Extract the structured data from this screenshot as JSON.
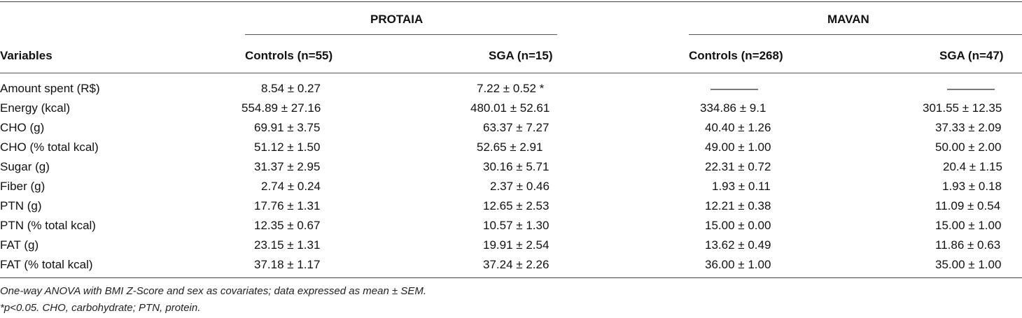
{
  "table": {
    "groups": [
      "PROTAIA",
      "MAVAN"
    ],
    "headers": {
      "variables": "Variables",
      "col1": "Controls (n=55)",
      "col2": "SGA (n=15)",
      "col3": "Controls (n=268)",
      "col4": "SGA (n=47)"
    },
    "rows": [
      {
        "label": "Amount spent (R$)",
        "c1": "8.54 ± 0.27",
        "c2": "7.22 ± 0.52 *",
        "c3": "————",
        "c4": "————"
      },
      {
        "label": "Energy (kcal)",
        "c1": "554.89 ± 27.16",
        "c2": "480.01 ± 52.61",
        "c3": "334.86 ± 9.1",
        "c4": "301.55 ± 12.35"
      },
      {
        "label": "CHO (g)",
        "c1": "69.91 ± 3.75",
        "c2": "63.37 ± 7.27",
        "c3": "40.40 ± 1.26",
        "c4": "37.33 ± 2.09"
      },
      {
        "label": "CHO (% total kcal)",
        "c1": "51.12 ± 1.50",
        "c2": "52.65 ± 2.91",
        "c3": "49.00 ± 1.00",
        "c4": "50.00 ± 2.00"
      },
      {
        "label": "Sugar (g)",
        "c1": "31.37 ± 2.95",
        "c2": "30.16 ± 5.71",
        "c3": "22.31 ± 0.72",
        "c4": "20.4 ± 1.15"
      },
      {
        "label": "Fiber (g)",
        "c1": "2.74 ± 0.24",
        "c2": "2.37 ± 0.46",
        "c3": "1.93 ± 0.11",
        "c4": "1.93 ± 0.18"
      },
      {
        "label": "PTN (g)",
        "c1": "17.76 ± 1.31",
        "c2": "12.65 ± 2.53",
        "c3": "12.21 ± 0.38",
        "c4": "11.09 ± 0.54"
      },
      {
        "label": "PTN (% total kcal)",
        "c1": "12.35 ± 0.67",
        "c2": "10.57 ± 1.30",
        "c3": "15.00 ± 0.00",
        "c4": "15.00 ± 1.00"
      },
      {
        "label": "FAT (g)",
        "c1": "23.15 ± 1.31",
        "c2": "19.91 ± 2.54",
        "c3": "13.62 ± 0.49",
        "c4": "11.86 ± 0.63"
      },
      {
        "label": "FAT (% total kcal)",
        "c1": "37.18 ± 1.17",
        "c2": "37.24 ± 2.26",
        "c3": "36.00 ± 1.00",
        "c4": "35.00 ± 1.00"
      }
    ],
    "footnotes": [
      "One-way ANOVA with BMI Z-Score and sex as covariates; data expressed as mean ± SEM.",
      "*p<0.05. CHO, carbohydrate; PTN, protein."
    ]
  }
}
